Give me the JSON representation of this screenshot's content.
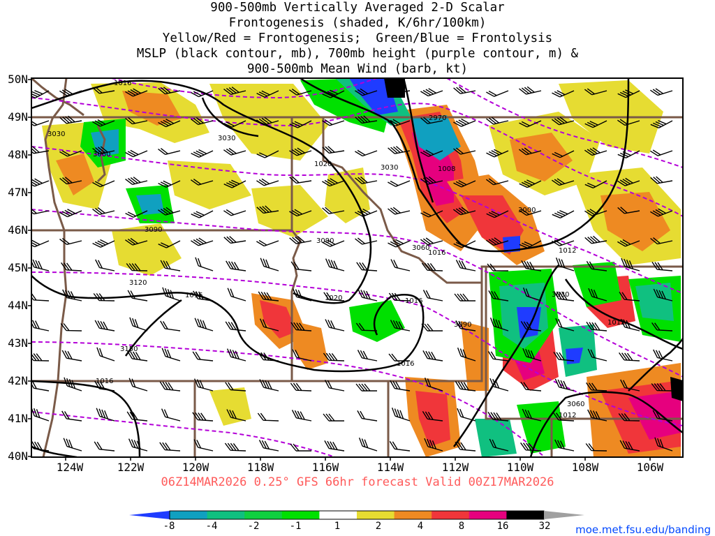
{
  "title": {
    "line1": "900-500mb Vertically Averaged 2-D Scalar",
    "line2": "Frontogenesis (shaded, K/6hr/100km)",
    "line3": "Yellow/Red = Frontogenesis;  Green/Blue = Frontolysis",
    "line4": "MSLP (black contour, mb), 700mb height (purple contour, m) &",
    "line5": "900-500mb Mean Wind (barb, kt)"
  },
  "lat_labels": [
    "50N",
    "49N",
    "48N",
    "47N",
    "46N",
    "45N",
    "44N",
    "43N",
    "42N",
    "41N",
    "40N"
  ],
  "lon_labels": [
    "124W",
    "122W",
    "120W",
    "118W",
    "116W",
    "114W",
    "112W",
    "110W",
    "108W",
    "106W"
  ],
  "footer": "06Z14MAR2026 0.25° GFS 66hr forecast Valid 00Z17MAR2026",
  "credit": "moe.met.fsu.edu/banding",
  "colorbar": {
    "ticks": [
      "-8",
      "-4",
      "-2",
      "-1",
      "1",
      "2",
      "4",
      "8",
      "16",
      "32"
    ],
    "colors": [
      "#1f3cff",
      "#10a0c0",
      "#10c080",
      "#10d040",
      "#00e000",
      "#ffffff",
      "#e6dc32",
      "#ee8a22",
      "#f0363a",
      "#e6007e",
      "#000000",
      "#a0a0a0"
    ]
  },
  "pressure_labels": [
    "1016",
    "1020",
    "1008",
    "1016",
    "1016",
    "1016",
    "1020",
    "1016",
    "1016",
    "1012",
    "1012",
    "1012"
  ],
  "height_labels": [
    "3030",
    "3030",
    "3060",
    "2970",
    "3030",
    "3000",
    "3090",
    "3090",
    "3060",
    "3120",
    "3150",
    "3090",
    "3030",
    "3060"
  ],
  "map_colors": {
    "state_borders": "#7a5a48",
    "coastline": "#7a5a48",
    "mslp_contours": "#000000",
    "height_contours": "#b400d8",
    "wind_barbs": "#000000"
  }
}
